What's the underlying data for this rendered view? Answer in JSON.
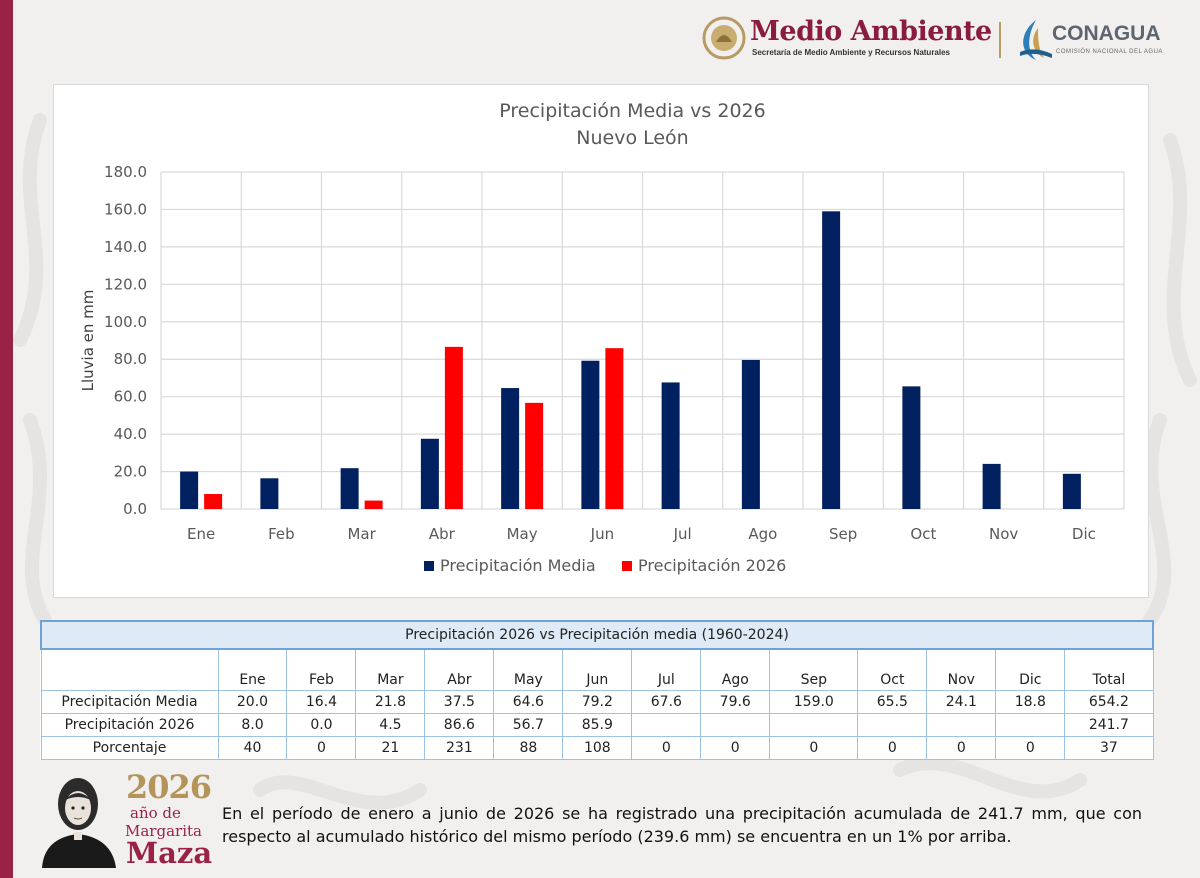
{
  "header": {
    "logo_title": "Medio Ambiente",
    "logo_subtitle": "Secretaría de Medio Ambiente y Recursos Naturales",
    "agency_title": "CONAGUA",
    "agency_subtitle": "COMISIÓN NACIONAL DEL AGUA"
  },
  "colors": {
    "accent": "#9b2247",
    "series_media": "#002060",
    "series_2026": "#ff0000",
    "table_border": "#9cc3e5",
    "table_title_bg": "#deeaf6"
  },
  "chart_data": {
    "type": "bar",
    "title": "Precipitación Media vs 2026",
    "subtitle": "Nuevo León",
    "xlabel": "",
    "ylabel": "Lluvia en mm",
    "ylim": [
      0,
      180
    ],
    "yticks": [
      "0.0",
      "20.0",
      "40.0",
      "60.0",
      "80.0",
      "100.0",
      "120.0",
      "140.0",
      "160.0",
      "180.0"
    ],
    "grid": true,
    "legend_position": "bottom",
    "categories": [
      "Ene",
      "Feb",
      "Mar",
      "Abr",
      "May",
      "Jun",
      "Jul",
      "Ago",
      "Sep",
      "Oct",
      "Nov",
      "Dic"
    ],
    "series": [
      {
        "name": "Precipitación Media",
        "values": [
          20.0,
          16.4,
          21.8,
          37.5,
          64.6,
          79.2,
          67.6,
          79.6,
          159.0,
          65.5,
          24.1,
          18.8
        ]
      },
      {
        "name": "Precipitación 2026",
        "values": [
          8.0,
          0.0,
          4.5,
          86.6,
          56.7,
          85.9,
          null,
          null,
          null,
          null,
          null,
          null
        ]
      }
    ]
  },
  "table": {
    "title": "Precipitación 2026 vs Precipitación media (1960-2024)",
    "columns": [
      "Ene",
      "Feb",
      "Mar",
      "Abr",
      "May",
      "Jun",
      "Jul",
      "Ago",
      "Sep",
      "Oct",
      "Nov",
      "Dic",
      "Total"
    ],
    "rows": [
      {
        "label": "Precipitación Media",
        "cells": [
          "20.0",
          "16.4",
          "21.8",
          "37.5",
          "64.6",
          "79.2",
          "67.6",
          "79.6",
          "159.0",
          "65.5",
          "24.1",
          "18.8",
          "654.2"
        ]
      },
      {
        "label": "Precipitación 2026",
        "cells": [
          "8.0",
          "0.0",
          "4.5",
          "86.6",
          "56.7",
          "85.9",
          "",
          "",
          "",
          "",
          "",
          "",
          "241.7"
        ]
      },
      {
        "label": "Porcentaje",
        "cells": [
          "40",
          "0",
          "21",
          "231",
          "88",
          "108",
          "0",
          "0",
          "0",
          "0",
          "0",
          "0",
          "37"
        ]
      }
    ]
  },
  "footer": {
    "anniversary_year": "2026",
    "anniversary_de": "año de",
    "anniversary_name_1": "Margarita",
    "anniversary_name_2": "Maza",
    "summary": "En el período de enero a junio de 2026 se ha registrado una precipitación acumulada de 241.7 mm, que con respecto al acumulado histórico del mismo período (239.6 mm) se encuentra en un 1% por arriba."
  }
}
